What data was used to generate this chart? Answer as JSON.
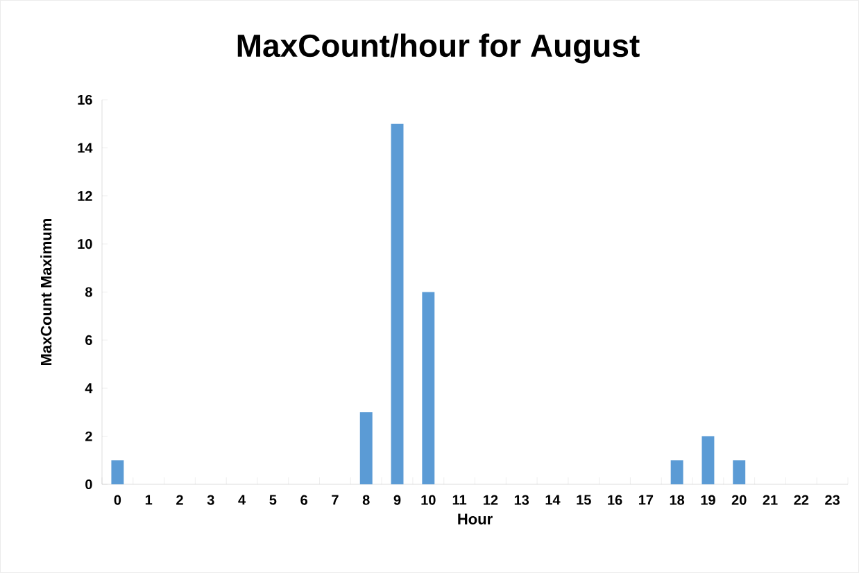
{
  "chart_data": {
    "type": "bar",
    "title": "MaxCount/hour for August",
    "xlabel": "Hour",
    "ylabel": "MaxCount Maximum",
    "categories": [
      "0",
      "1",
      "2",
      "3",
      "4",
      "5",
      "6",
      "7",
      "8",
      "9",
      "10",
      "11",
      "12",
      "13",
      "14",
      "15",
      "16",
      "17",
      "18",
      "19",
      "20",
      "21",
      "22",
      "23"
    ],
    "values": [
      1,
      0,
      0,
      0,
      0,
      0,
      0,
      0,
      3,
      15,
      8,
      0,
      0,
      0,
      0,
      0,
      0,
      0,
      1,
      2,
      1,
      0,
      0,
      0
    ],
    "color": "#5b9bd5",
    "ylim": [
      0,
      16
    ],
    "yticks": [
      0,
      2,
      4,
      6,
      8,
      10,
      12,
      14,
      16
    ],
    "grid": false
  }
}
